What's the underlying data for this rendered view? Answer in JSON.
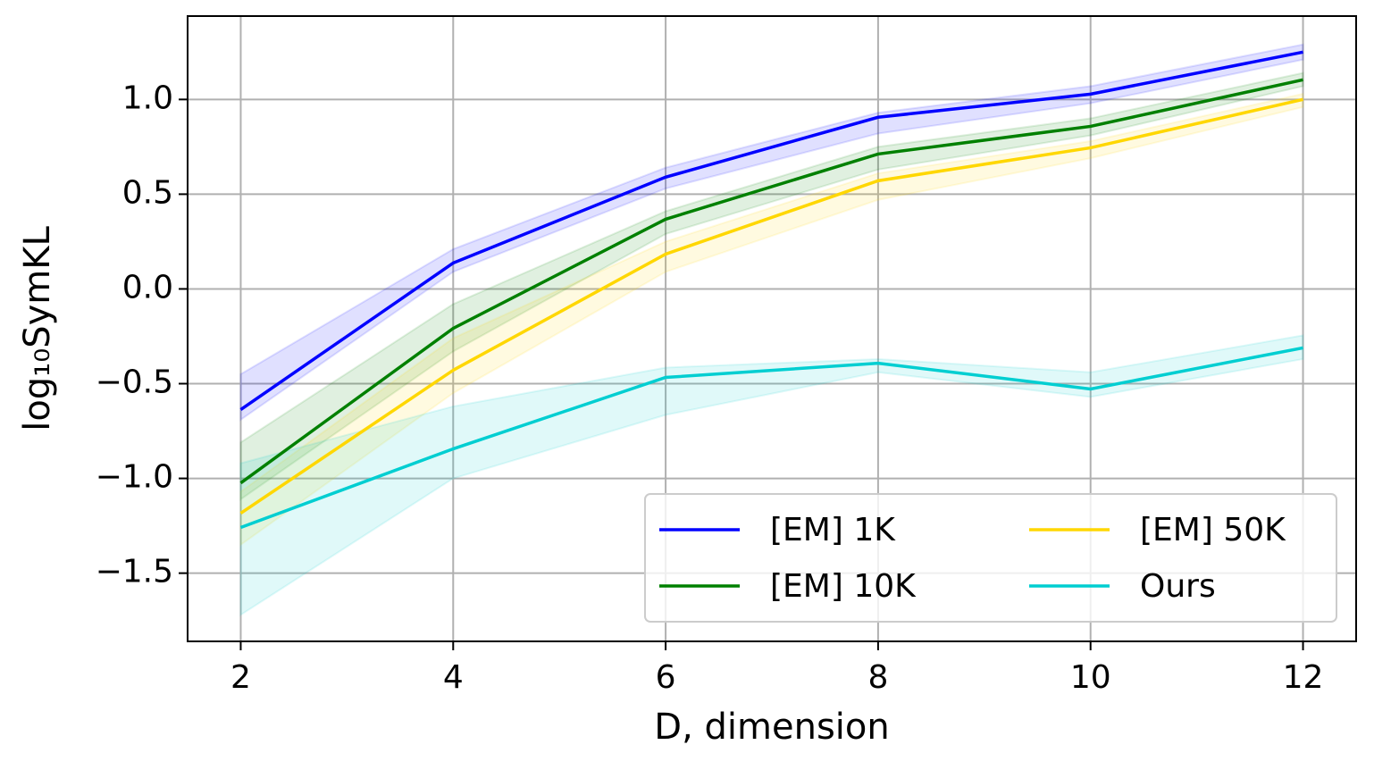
{
  "chart_data": {
    "type": "line",
    "xlabel": "D, dimension",
    "ylabel": "log₁₀SymKL",
    "x": [
      2,
      4,
      6,
      8,
      10,
      12
    ],
    "series": [
      {
        "name": "[EM] 1K",
        "color": "#0000ff",
        "values": [
          -0.637,
          0.137,
          0.59,
          0.906,
          1.028,
          1.25
        ],
        "lower": [
          -0.69,
          0.09,
          0.53,
          0.82,
          0.98,
          1.21
        ],
        "upper": [
          -0.45,
          0.21,
          0.64,
          0.93,
          1.07,
          1.29
        ]
      },
      {
        "name": "[EM] 10K",
        "color": "#008000",
        "values": [
          -1.024,
          -0.208,
          0.368,
          0.712,
          0.858,
          1.104
        ],
        "lower": [
          -1.11,
          -0.33,
          0.29,
          0.63,
          0.81,
          1.07
        ],
        "upper": [
          -0.81,
          -0.08,
          0.41,
          0.75,
          0.9,
          1.14
        ]
      },
      {
        "name": "[EM] 50K",
        "color": "#ffd700",
        "values": [
          -1.184,
          -0.429,
          0.184,
          0.571,
          0.745,
          1.0
        ],
        "lower": [
          -1.35,
          -0.55,
          0.09,
          0.47,
          0.69,
          0.96
        ],
        "upper": [
          -1.07,
          -0.26,
          0.25,
          0.61,
          0.78,
          1.03
        ]
      },
      {
        "name": "Ours",
        "color": "#00ced1",
        "values": [
          -1.259,
          -0.844,
          -0.467,
          -0.392,
          -0.528,
          -0.311
        ],
        "lower": [
          -1.72,
          -1.0,
          -0.665,
          -0.44,
          -0.57,
          -0.37
        ],
        "upper": [
          -0.92,
          -0.62,
          -0.415,
          -0.37,
          -0.44,
          -0.245
        ]
      }
    ],
    "xlim": [
      1.5,
      12.5
    ],
    "ylim": [
      -1.86,
      1.44
    ],
    "xticks": [
      2,
      4,
      6,
      8,
      10,
      12
    ],
    "yticks": [
      {
        "value": -1.5,
        "label": "−1.5"
      },
      {
        "value": -1.0,
        "label": "−1.0"
      },
      {
        "value": -0.5,
        "label": "−0.5"
      },
      {
        "value": 0.0,
        "label": "0.0"
      },
      0.5,
      {
        "value": 1.0,
        "label": "1.0"
      }
    ],
    "grid": true,
    "legend": "lower right"
  }
}
